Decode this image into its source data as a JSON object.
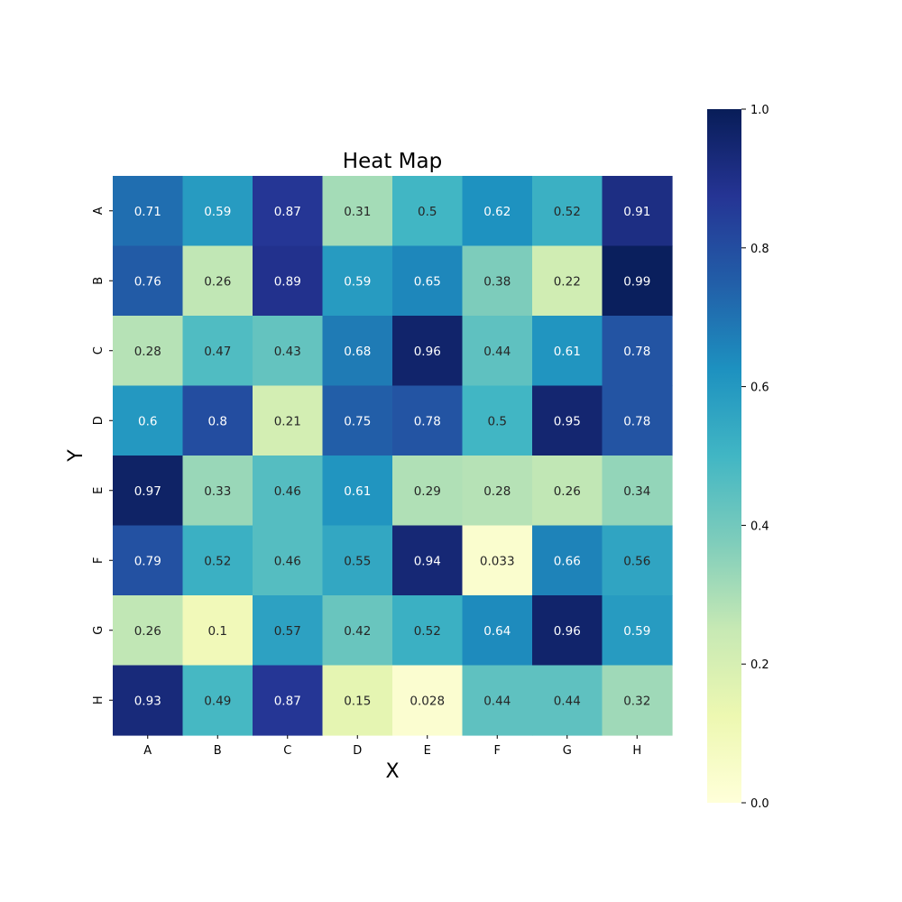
{
  "chart_data": {
    "type": "heatmap",
    "title": "Heat Map",
    "xlabel": "X",
    "ylabel": "Y",
    "x_categories": [
      "A",
      "B",
      "C",
      "D",
      "E",
      "F",
      "G",
      "H"
    ],
    "y_categories": [
      "A",
      "B",
      "C",
      "D",
      "E",
      "F",
      "G",
      "H"
    ],
    "values": [
      [
        0.71,
        0.59,
        0.87,
        0.31,
        0.5,
        0.62,
        0.52,
        0.91
      ],
      [
        0.76,
        0.26,
        0.89,
        0.59,
        0.65,
        0.38,
        0.22,
        0.99
      ],
      [
        0.28,
        0.47,
        0.43,
        0.68,
        0.96,
        0.44,
        0.61,
        0.78
      ],
      [
        0.6,
        0.8,
        0.21,
        0.75,
        0.78,
        0.5,
        0.95,
        0.78
      ],
      [
        0.97,
        0.33,
        0.46,
        0.61,
        0.29,
        0.28,
        0.26,
        0.34
      ],
      [
        0.79,
        0.52,
        0.46,
        0.55,
        0.94,
        0.033,
        0.66,
        0.56
      ],
      [
        0.26,
        0.1,
        0.57,
        0.42,
        0.52,
        0.64,
        0.96,
        0.59
      ],
      [
        0.93,
        0.49,
        0.87,
        0.15,
        0.028,
        0.44,
        0.44,
        0.32
      ]
    ],
    "annotations": [
      [
        "0.71",
        "0.59",
        "0.87",
        "0.31",
        "0.5",
        "0.62",
        "0.52",
        "0.91"
      ],
      [
        "0.76",
        "0.26",
        "0.89",
        "0.59",
        "0.65",
        "0.38",
        "0.22",
        "0.99"
      ],
      [
        "0.28",
        "0.47",
        "0.43",
        "0.68",
        "0.96",
        "0.44",
        "0.61",
        "0.78"
      ],
      [
        "0.6",
        "0.8",
        "0.21",
        "0.75",
        "0.78",
        "0.5",
        "0.95",
        "0.78"
      ],
      [
        "0.97",
        "0.33",
        "0.46",
        "0.61",
        "0.29",
        "0.28",
        "0.26",
        "0.34"
      ],
      [
        "0.79",
        "0.52",
        "0.46",
        "0.55",
        "0.94",
        "0.033",
        "0.66",
        "0.56"
      ],
      [
        "0.26",
        "0.1",
        "0.57",
        "0.42",
        "0.52",
        "0.64",
        "0.96",
        "0.59"
      ],
      [
        "0.93",
        "0.49",
        "0.87",
        "0.15",
        "0.028",
        "0.44",
        "0.44",
        "0.32"
      ]
    ],
    "colormap": "YlGnBu",
    "vmin": 0.0,
    "vmax": 1.0,
    "colorbar_ticks": [
      "0.0",
      "0.2",
      "0.4",
      "0.6",
      "0.8",
      "1.0"
    ],
    "colors": {
      "stops": [
        "#ffffd9",
        "#edf8b1",
        "#c7e9b4",
        "#7fcdbb",
        "#41b6c4",
        "#1d91c0",
        "#225ea8",
        "#253494",
        "#081d58"
      ],
      "text_light": "#ffffff",
      "text_dark": "#262626"
    }
  }
}
